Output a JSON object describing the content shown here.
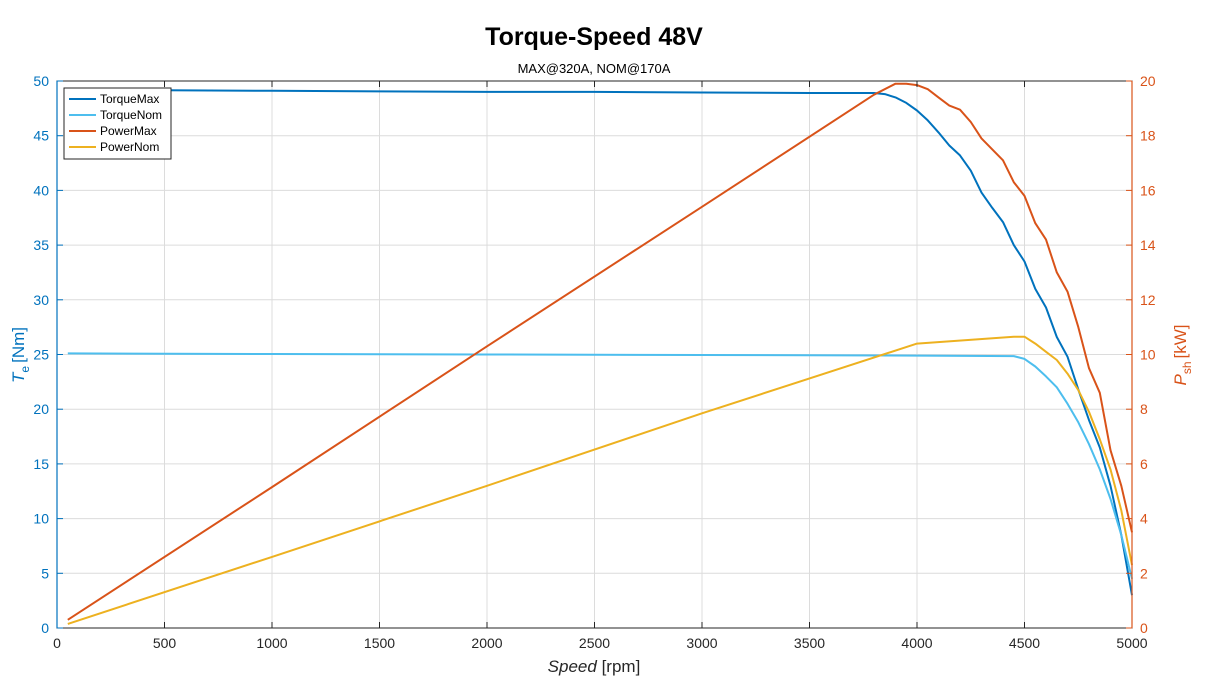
{
  "chart_data": {
    "type": "line",
    "title": "Torque-Speed 48V",
    "subtitle": "MAX@320A, NOM@170A",
    "xlabel": "Speed",
    "xlabel_unit": "[rpm]",
    "ylabel_left_symbol": "T",
    "ylabel_left_sub": "e",
    "ylabel_left_unit": "[Nm]",
    "ylabel_right_symbol": "P",
    "ylabel_right_sub": "sh",
    "ylabel_right_unit": "[kW]",
    "xlim": [
      0,
      5000
    ],
    "ylim_left": [
      0,
      50
    ],
    "ylim_right": [
      0,
      20
    ],
    "xticks": [
      "0",
      "500",
      "1000",
      "1500",
      "2000",
      "2500",
      "3000",
      "3500",
      "4000",
      "4500",
      "5000"
    ],
    "yticks_left": [
      "0",
      "5",
      "10",
      "15",
      "20",
      "25",
      "30",
      "35",
      "40",
      "45",
      "50"
    ],
    "yticks_right": [
      "0",
      "2",
      "4",
      "6",
      "8",
      "10",
      "12",
      "14",
      "16",
      "18",
      "20"
    ],
    "grid": true,
    "legend_position": "top-left",
    "colors": {
      "left_axis": "#0072BD",
      "right_axis": "#D95319"
    },
    "series": [
      {
        "name": "TorqueMax",
        "axis": "left",
        "color": "#0072BD",
        "x": [
          50,
          500,
          1000,
          1500,
          2000,
          2500,
          3000,
          3500,
          3800,
          3850,
          3900,
          3950,
          4000,
          4050,
          4100,
          4150,
          4200,
          4250,
          4300,
          4350,
          4400,
          4450,
          4500,
          4550,
          4600,
          4650,
          4700,
          4750,
          4800,
          4850,
          4900,
          4950,
          5000
        ],
        "y": [
          49.2,
          49.15,
          49.1,
          49.05,
          49.0,
          49.0,
          48.95,
          48.9,
          48.9,
          48.8,
          48.5,
          48.0,
          47.3,
          46.4,
          45.3,
          44.1,
          43.2,
          41.8,
          39.8,
          38.4,
          37.1,
          35.0,
          33.5,
          31.0,
          29.3,
          26.6,
          24.8,
          21.8,
          19.0,
          16.5,
          13.0,
          8.5,
          3.0
        ]
      },
      {
        "name": "TorqueNom",
        "axis": "left",
        "color": "#4DBEEE",
        "x": [
          50,
          1000,
          2000,
          3000,
          4000,
          4450,
          4500,
          4550,
          4600,
          4650,
          4700,
          4750,
          4800,
          4850,
          4900,
          4950,
          5000
        ],
        "y": [
          25.1,
          25.05,
          25.0,
          24.95,
          24.9,
          24.85,
          24.6,
          23.9,
          23.0,
          22.0,
          20.5,
          18.8,
          16.8,
          14.5,
          11.8,
          8.5,
          4.5
        ]
      },
      {
        "name": "PowerMax",
        "axis": "right",
        "color": "#D95319",
        "x": [
          50,
          1000,
          2000,
          3000,
          3800,
          3900,
          3950,
          4000,
          4050,
          4100,
          4150,
          4200,
          4250,
          4300,
          4350,
          4400,
          4450,
          4500,
          4550,
          4600,
          4650,
          4700,
          4750,
          4800,
          4850,
          4900,
          4950,
          5000
        ],
        "y": [
          0.3,
          5.15,
          10.3,
          15.4,
          19.5,
          19.9,
          19.9,
          19.85,
          19.7,
          19.4,
          19.1,
          18.95,
          18.5,
          17.9,
          17.5,
          17.1,
          16.3,
          15.8,
          14.8,
          14.2,
          13.0,
          12.3,
          11.0,
          9.5,
          8.6,
          6.5,
          5.2,
          3.5
        ]
      },
      {
        "name": "PowerNom",
        "axis": "right",
        "color": "#EDB120",
        "x": [
          50,
          1000,
          2000,
          3000,
          4000,
          4450,
          4500,
          4550,
          4600,
          4650,
          4700,
          4750,
          4800,
          4850,
          4900,
          4950,
          5000
        ],
        "y": [
          0.15,
          2.6,
          5.2,
          7.85,
          10.4,
          10.65,
          10.65,
          10.4,
          10.1,
          9.8,
          9.3,
          8.7,
          7.9,
          6.9,
          5.8,
          4.3,
          2.3
        ]
      }
    ]
  }
}
